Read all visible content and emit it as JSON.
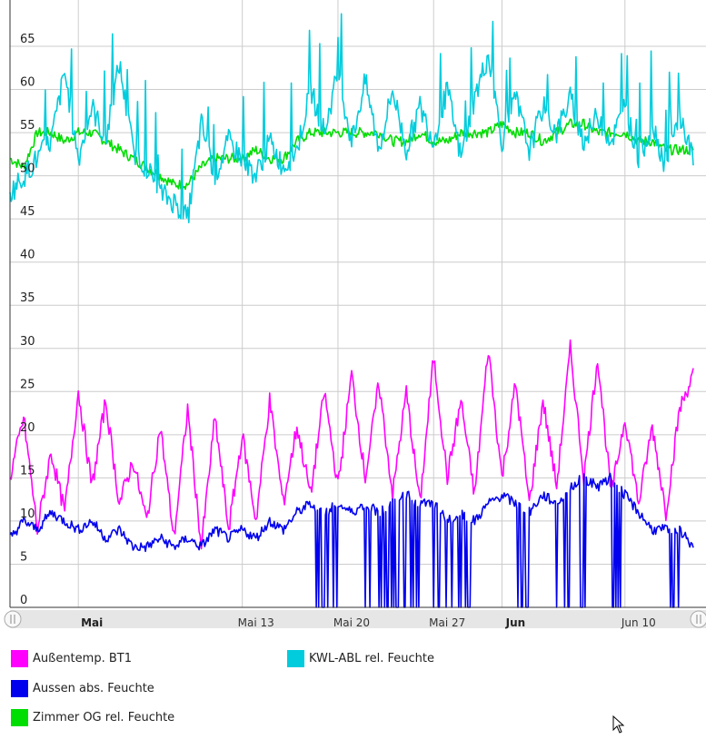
{
  "chart_data": {
    "type": "line",
    "title": "",
    "xlabel": "",
    "ylabel": "",
    "ylim": [
      0,
      68
    ],
    "y_ticks": [
      "0",
      "5",
      "10",
      "15",
      "20",
      "25",
      "30",
      "35",
      "40",
      "45",
      "50",
      "55",
      "60",
      "65"
    ],
    "x_range": [
      "2024-04-26",
      "2024-06-15"
    ],
    "x_ticks": [
      {
        "date": "2024-05-01",
        "label": "Mai",
        "bold": true
      },
      {
        "date": "2024-05-13",
        "label": "Mai 13",
        "bold": false
      },
      {
        "date": "2024-05-20",
        "label": "Mai 20",
        "bold": false
      },
      {
        "date": "2024-05-27",
        "label": "Mai 27",
        "bold": false
      },
      {
        "date": "2024-06-01",
        "label": "Jun",
        "bold": true
      },
      {
        "date": "2024-06-10",
        "label": "Jun 10",
        "bold": false
      }
    ],
    "grid": true,
    "legend_position": "bottom",
    "series": [
      {
        "name": "Außentemp. BT1",
        "color": "#ff00ff",
        "points": [
          [
            "2024-04-26",
            15
          ],
          [
            "2024-04-27",
            22
          ],
          [
            "2024-04-28",
            9
          ],
          [
            "2024-04-29",
            18
          ],
          [
            "2024-04-30",
            11
          ],
          [
            "2024-05-01",
            25
          ],
          [
            "2024-05-02",
            14
          ],
          [
            "2024-05-03",
            24
          ],
          [
            "2024-05-04",
            12
          ],
          [
            "2024-05-05",
            17
          ],
          [
            "2024-05-06",
            10
          ],
          [
            "2024-05-07",
            21
          ],
          [
            "2024-05-08",
            8
          ],
          [
            "2024-05-09",
            23
          ],
          [
            "2024-05-10",
            7
          ],
          [
            "2024-05-11",
            22
          ],
          [
            "2024-05-12",
            9
          ],
          [
            "2024-05-13",
            20
          ],
          [
            "2024-05-14",
            10
          ],
          [
            "2024-05-15",
            24
          ],
          [
            "2024-05-16",
            12
          ],
          [
            "2024-05-17",
            21
          ],
          [
            "2024-05-18",
            13
          ],
          [
            "2024-05-19",
            25
          ],
          [
            "2024-05-20",
            14
          ],
          [
            "2024-05-21",
            27
          ],
          [
            "2024-05-22",
            15
          ],
          [
            "2024-05-23",
            26
          ],
          [
            "2024-05-24",
            13
          ],
          [
            "2024-05-25",
            25
          ],
          [
            "2024-05-26",
            12
          ],
          [
            "2024-05-27",
            29
          ],
          [
            "2024-05-28",
            15
          ],
          [
            "2024-05-29",
            24
          ],
          [
            "2024-05-30",
            13
          ],
          [
            "2024-05-31",
            30
          ],
          [
            "2024-06-01",
            15
          ],
          [
            "2024-06-02",
            26
          ],
          [
            "2024-06-03",
            12
          ],
          [
            "2024-06-04",
            24
          ],
          [
            "2024-06-05",
            14
          ],
          [
            "2024-06-06",
            30
          ],
          [
            "2024-06-07",
            15
          ],
          [
            "2024-06-08",
            29
          ],
          [
            "2024-06-09",
            13
          ],
          [
            "2024-06-10",
            22
          ],
          [
            "2024-06-11",
            12
          ],
          [
            "2024-06-12",
            21
          ],
          [
            "2024-06-13",
            11
          ],
          [
            "2024-06-14",
            23
          ],
          [
            "2024-06-15",
            27
          ]
        ]
      },
      {
        "name": "Aussen abs. Feuchte",
        "color": "#0000ee",
        "points": [
          [
            "2024-04-26",
            8
          ],
          [
            "2024-04-27",
            10
          ],
          [
            "2024-04-28",
            9
          ],
          [
            "2024-04-29",
            11
          ],
          [
            "2024-04-30",
            10
          ],
          [
            "2024-05-01",
            9
          ],
          [
            "2024-05-02",
            10
          ],
          [
            "2024-05-03",
            8
          ],
          [
            "2024-05-04",
            9
          ],
          [
            "2024-05-05",
            7
          ],
          [
            "2024-05-06",
            7
          ],
          [
            "2024-05-07",
            8
          ],
          [
            "2024-05-08",
            7
          ],
          [
            "2024-05-09",
            8
          ],
          [
            "2024-05-10",
            7
          ],
          [
            "2024-05-11",
            9
          ],
          [
            "2024-05-12",
            8
          ],
          [
            "2024-05-13",
            9
          ],
          [
            "2024-05-14",
            8
          ],
          [
            "2024-05-15",
            10
          ],
          [
            "2024-05-16",
            9
          ],
          [
            "2024-05-17",
            11
          ],
          [
            "2024-05-18",
            12
          ],
          [
            "2024-05-19",
            11
          ],
          [
            "2024-05-20",
            12
          ],
          [
            "2024-05-21",
            11
          ],
          [
            "2024-05-22",
            12
          ],
          [
            "2024-05-23",
            11
          ],
          [
            "2024-05-24",
            12
          ],
          [
            "2024-05-25",
            13
          ],
          [
            "2024-05-26",
            12
          ],
          [
            "2024-05-27",
            12
          ],
          [
            "2024-05-28",
            10
          ],
          [
            "2024-05-29",
            11
          ],
          [
            "2024-05-30",
            10
          ],
          [
            "2024-05-31",
            12
          ],
          [
            "2024-06-01",
            13
          ],
          [
            "2024-06-02",
            12
          ],
          [
            "2024-06-03",
            11
          ],
          [
            "2024-06-04",
            13
          ],
          [
            "2024-06-05",
            12
          ],
          [
            "2024-06-06",
            14
          ],
          [
            "2024-06-07",
            15
          ],
          [
            "2024-06-08",
            14
          ],
          [
            "2024-06-09",
            15
          ],
          [
            "2024-06-10",
            13
          ],
          [
            "2024-06-11",
            11
          ],
          [
            "2024-06-12",
            9
          ],
          [
            "2024-06-13",
            9
          ],
          [
            "2024-06-14",
            9
          ],
          [
            "2024-06-15",
            7
          ]
        ],
        "drops_to_zero": [
          "2024-05-18",
          "2024-05-19",
          "2024-05-22",
          "2024-05-23",
          "2024-05-24",
          "2024-05-25",
          "2024-05-27",
          "2024-05-28",
          "2024-05-29",
          "2024-06-02",
          "2024-06-05",
          "2024-06-06",
          "2024-06-07",
          "2024-06-09",
          "2024-06-13"
        ]
      },
      {
        "name": "Zimmer OG rel. Feuchte",
        "color": "#00dd00",
        "points": [
          [
            "2024-04-26",
            52
          ],
          [
            "2024-04-27",
            51
          ],
          [
            "2024-04-28",
            55
          ],
          [
            "2024-04-29",
            55
          ],
          [
            "2024-04-30",
            54
          ],
          [
            "2024-05-01",
            55
          ],
          [
            "2024-05-02",
            55
          ],
          [
            "2024-05-03",
            54
          ],
          [
            "2024-05-04",
            53
          ],
          [
            "2024-05-05",
            52
          ],
          [
            "2024-05-06",
            51
          ],
          [
            "2024-05-07",
            50
          ],
          [
            "2024-05-08",
            49
          ],
          [
            "2024-05-09",
            49
          ],
          [
            "2024-05-10",
            51
          ],
          [
            "2024-05-11",
            52
          ],
          [
            "2024-05-12",
            52
          ],
          [
            "2024-05-13",
            52
          ],
          [
            "2024-05-14",
            53
          ],
          [
            "2024-05-15",
            52
          ],
          [
            "2024-05-16",
            52
          ],
          [
            "2024-05-17",
            54
          ],
          [
            "2024-05-18",
            55
          ],
          [
            "2024-05-19",
            55
          ],
          [
            "2024-05-20",
            55
          ],
          [
            "2024-05-21",
            55
          ],
          [
            "2024-05-22",
            55
          ],
          [
            "2024-05-23",
            55
          ],
          [
            "2024-05-24",
            54
          ],
          [
            "2024-05-25",
            54
          ],
          [
            "2024-05-26",
            55
          ],
          [
            "2024-05-27",
            54
          ],
          [
            "2024-05-28",
            54
          ],
          [
            "2024-05-29",
            55
          ],
          [
            "2024-05-30",
            55
          ],
          [
            "2024-05-31",
            55
          ],
          [
            "2024-06-01",
            56
          ],
          [
            "2024-06-02",
            55
          ],
          [
            "2024-06-03",
            55
          ],
          [
            "2024-06-04",
            54
          ],
          [
            "2024-06-05",
            55
          ],
          [
            "2024-06-06",
            56
          ],
          [
            "2024-06-07",
            56
          ],
          [
            "2024-06-08",
            55
          ],
          [
            "2024-06-09",
            55
          ],
          [
            "2024-06-10",
            55
          ],
          [
            "2024-06-11",
            54
          ],
          [
            "2024-06-12",
            54
          ],
          [
            "2024-06-13",
            53
          ],
          [
            "2024-06-14",
            53
          ],
          [
            "2024-06-15",
            53
          ]
        ]
      },
      {
        "name": "KWL-ABL rel. Feuchte",
        "color": "#00ccdd",
        "points": [
          [
            "2024-04-26",
            48
          ],
          [
            "2024-04-27",
            50
          ],
          [
            "2024-04-28",
            52
          ],
          [
            "2024-04-29",
            54
          ],
          [
            "2024-04-30",
            62
          ],
          [
            "2024-05-01",
            52
          ],
          [
            "2024-05-02",
            58
          ],
          [
            "2024-05-03",
            54
          ],
          [
            "2024-05-04",
            63
          ],
          [
            "2024-05-05",
            53
          ],
          [
            "2024-05-06",
            51
          ],
          [
            "2024-05-07",
            48
          ],
          [
            "2024-05-08",
            47
          ],
          [
            "2024-05-09",
            45
          ],
          [
            "2024-05-10",
            56
          ],
          [
            "2024-05-11",
            50
          ],
          [
            "2024-05-12",
            54
          ],
          [
            "2024-05-13",
            52
          ],
          [
            "2024-05-14",
            50
          ],
          [
            "2024-05-15",
            54
          ],
          [
            "2024-05-16",
            51
          ],
          [
            "2024-05-17",
            53
          ],
          [
            "2024-05-18",
            60
          ],
          [
            "2024-05-19",
            55
          ],
          [
            "2024-05-20",
            62
          ],
          [
            "2024-05-21",
            54
          ],
          [
            "2024-05-22",
            61
          ],
          [
            "2024-05-23",
            53
          ],
          [
            "2024-05-24",
            60
          ],
          [
            "2024-05-25",
            53
          ],
          [
            "2024-05-26",
            58
          ],
          [
            "2024-05-27",
            54
          ],
          [
            "2024-05-28",
            60
          ],
          [
            "2024-05-29",
            52
          ],
          [
            "2024-05-30",
            59
          ],
          [
            "2024-05-31",
            64
          ],
          [
            "2024-06-01",
            54
          ],
          [
            "2024-06-02",
            59
          ],
          [
            "2024-06-03",
            53
          ],
          [
            "2024-06-04",
            58
          ],
          [
            "2024-06-05",
            55
          ],
          [
            "2024-06-06",
            59
          ],
          [
            "2024-06-07",
            54
          ],
          [
            "2024-06-08",
            57
          ],
          [
            "2024-06-09",
            54
          ],
          [
            "2024-06-10",
            58
          ],
          [
            "2024-06-11",
            52
          ],
          [
            "2024-06-12",
            56
          ],
          [
            "2024-06-13",
            51
          ],
          [
            "2024-06-14",
            57
          ],
          [
            "2024-06-15",
            52
          ]
        ]
      }
    ]
  },
  "legend": [
    {
      "label": "Außentemp. BT1",
      "color": "#ff00ff"
    },
    {
      "label": "KWL-ABL rel. Feuchte",
      "color": "#00ccdd"
    },
    {
      "label": "Aussen abs. Feuchte",
      "color": "#0000ee"
    },
    {
      "label": "Zimmer OG rel. Feuchte",
      "color": "#00dd00"
    }
  ],
  "scrollbar": {
    "left_handle_icon": "grip-lines-icon",
    "right_handle_icon": "grip-lines-icon"
  },
  "cursor_icon": "mouse-pointer-icon"
}
